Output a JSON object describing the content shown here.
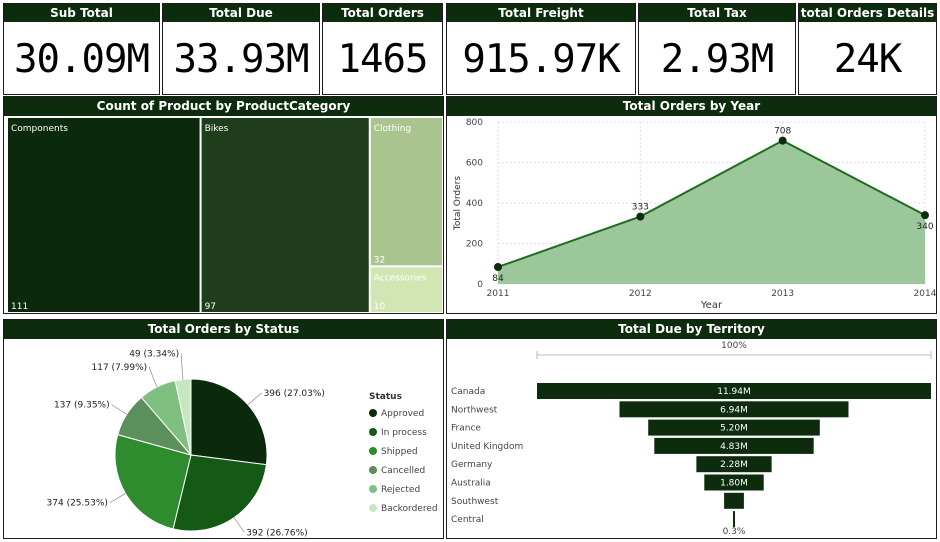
{
  "kpis": [
    {
      "title": "Sub Total",
      "value": "30.09M"
    },
    {
      "title": "Total Due",
      "value": "33.93M"
    },
    {
      "title": "Total Orders",
      "value": "1465"
    },
    {
      "title": "Total Freight",
      "value": "915.97K"
    },
    {
      "title": "Total Tax",
      "value": "2.93M"
    },
    {
      "title": "total Orders Details",
      "value": "24K"
    }
  ],
  "colors": {
    "header": "#0d2b0d",
    "treemap": [
      "#0b2a0b",
      "#1f3d1b",
      "#a9c48f",
      "#d2e6b3"
    ],
    "area_fill": "#9bc79b",
    "line": "#1e6e1e",
    "pie": [
      "#0b2a0b",
      "#145a14",
      "#2e8b2e",
      "#5b8f5b",
      "#7fbf7f",
      "#c5e8c0"
    ],
    "funnel": "#0d2b0d"
  },
  "chart_data": [
    {
      "type": "treemap",
      "title": "Count of Product by ProductCategory",
      "categories": [
        "Components",
        "Bikes",
        "Clothing",
        "Accessories"
      ],
      "values": [
        111,
        97,
        32,
        10
      ],
      "value_labels": [
        "111",
        "97",
        "32",
        "10"
      ]
    },
    {
      "type": "area",
      "title": "Total Orders by Year",
      "xlabel": "Year",
      "ylabel": "Total Orders",
      "x": [
        2011,
        2012,
        2013,
        2014
      ],
      "x_labels": [
        "2011",
        "2012",
        "2013",
        "2014"
      ],
      "values": [
        84,
        333,
        708,
        340
      ],
      "value_labels": [
        "84",
        "333",
        "708",
        "340"
      ],
      "ylim": [
        0,
        800
      ],
      "yticks": [
        0,
        200,
        400,
        600,
        800
      ],
      "ytick_labels": [
        "0",
        "200",
        "400",
        "600",
        "800"
      ],
      "grid": true
    },
    {
      "type": "pie",
      "title": "Total Orders by Status",
      "legend_title": "Status",
      "legend_position": "right",
      "categories": [
        "Approved",
        "In process",
        "Shipped",
        "Cancelled",
        "Rejected",
        "Backordered"
      ],
      "values": [
        396,
        392,
        374,
        137,
        117,
        49
      ],
      "value_labels": [
        "396 (27.03%)",
        "392 (26.76%)",
        "374 (25.53%)",
        "137 (9.35%)",
        "117 (7.99%)",
        "49 (3.34%)"
      ]
    },
    {
      "type": "funnel",
      "title": "Total Due by Territory",
      "top_label": "100%",
      "bottom_label": "0.3%",
      "categories": [
        "Canada",
        "Northwest",
        "France",
        "United Kingdom",
        "Germany",
        "Australia",
        "Southwest",
        "Central"
      ],
      "values": [
        11.94,
        6.94,
        5.2,
        4.83,
        2.28,
        1.8,
        0.6,
        0.04
      ],
      "value_labels": [
        "11.94M",
        "6.94M",
        "5.20M",
        "4.83M",
        "2.28M",
        "1.80M",
        "",
        ""
      ]
    }
  ]
}
